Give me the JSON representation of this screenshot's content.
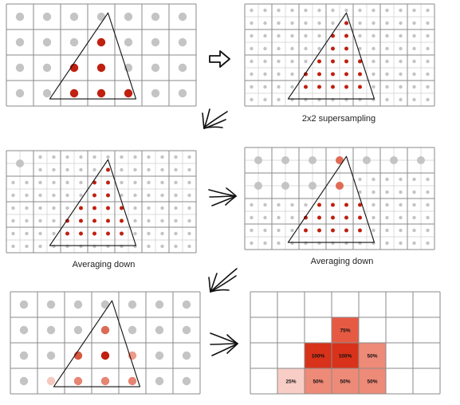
{
  "captions": {
    "supersampling": "2x2 supersampling",
    "averaging_down_left": "Averaging down",
    "averaging_down_right": "Averaging down"
  },
  "colors": {
    "grid_line": "#8a8a8a",
    "fine_grid_line": "#cfcfcf",
    "sample_gray": "#c4c4c4",
    "sample_red": "#c0200f",
    "full_coverage_red": "#e03a1e",
    "triangle_stroke": "#111111"
  },
  "final_coverage": {
    "cells": [
      {
        "row": 1,
        "col": 3,
        "label": "75%",
        "fill": "#e65a43"
      },
      {
        "row": 2,
        "col": 2,
        "label": "100%",
        "fill": "#d8321a"
      },
      {
        "row": 2,
        "col": 3,
        "label": "100%",
        "fill": "#d8321a"
      },
      {
        "row": 2,
        "col": 4,
        "label": "50%",
        "fill": "#ee8a78"
      },
      {
        "row": 3,
        "col": 1,
        "label": "25%",
        "fill": "#f8cdc5"
      },
      {
        "row": 3,
        "col": 2,
        "label": "50%",
        "fill": "#ee8a78"
      },
      {
        "row": 3,
        "col": 3,
        "label": "50%",
        "fill": "#ee8a78"
      },
      {
        "row": 3,
        "col": 4,
        "label": "50%",
        "fill": "#ee8a78"
      }
    ]
  }
}
